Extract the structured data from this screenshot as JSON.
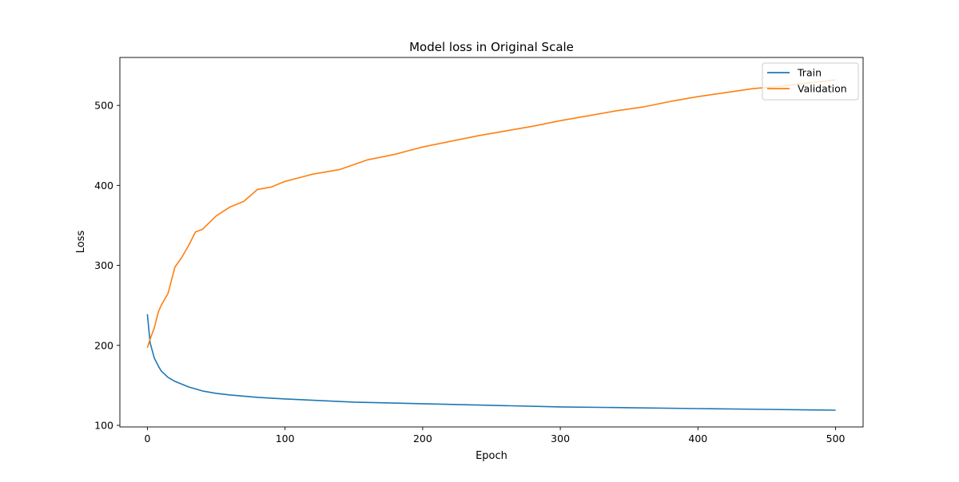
{
  "chart_data": {
    "type": "line",
    "title": "Model loss in Original Scale",
    "xlabel": "Epoch",
    "ylabel": "Loss",
    "xlim": [
      -20,
      520
    ],
    "ylim": [
      98,
      560
    ],
    "xticks": [
      0,
      100,
      200,
      300,
      400,
      500
    ],
    "yticks": [
      100,
      200,
      300,
      400,
      500
    ],
    "grid": false,
    "legend": "top-right",
    "series": [
      {
        "name": "Train",
        "color": "#1f77b4",
        "x": [
          0,
          2,
          5,
          8,
          10,
          15,
          20,
          30,
          40,
          50,
          60,
          80,
          100,
          150,
          200,
          250,
          300,
          350,
          400,
          450,
          500
        ],
        "values": [
          239,
          203,
          184,
          174,
          168,
          160,
          155,
          148,
          143,
          140,
          138,
          135,
          133,
          129,
          127,
          125,
          123,
          122,
          121,
          120,
          119
        ]
      },
      {
        "name": "Validation",
        "color": "#ff7f0e",
        "x": [
          0,
          2,
          5,
          8,
          10,
          15,
          20,
          25,
          30,
          35,
          40,
          50,
          60,
          70,
          80,
          90,
          100,
          120,
          140,
          160,
          180,
          200,
          220,
          240,
          260,
          280,
          300,
          320,
          340,
          360,
          380,
          400,
          420,
          440,
          460,
          480,
          500
        ],
        "values": [
          197,
          208,
          222,
          242,
          250,
          265,
          298,
          310,
          325,
          342,
          345,
          362,
          373,
          380,
          395,
          398,
          405,
          414,
          420,
          432,
          439,
          448,
          455,
          462,
          468,
          474,
          481,
          487,
          493,
          498,
          505,
          511,
          516,
          521,
          524,
          528,
          532
        ]
      }
    ]
  }
}
